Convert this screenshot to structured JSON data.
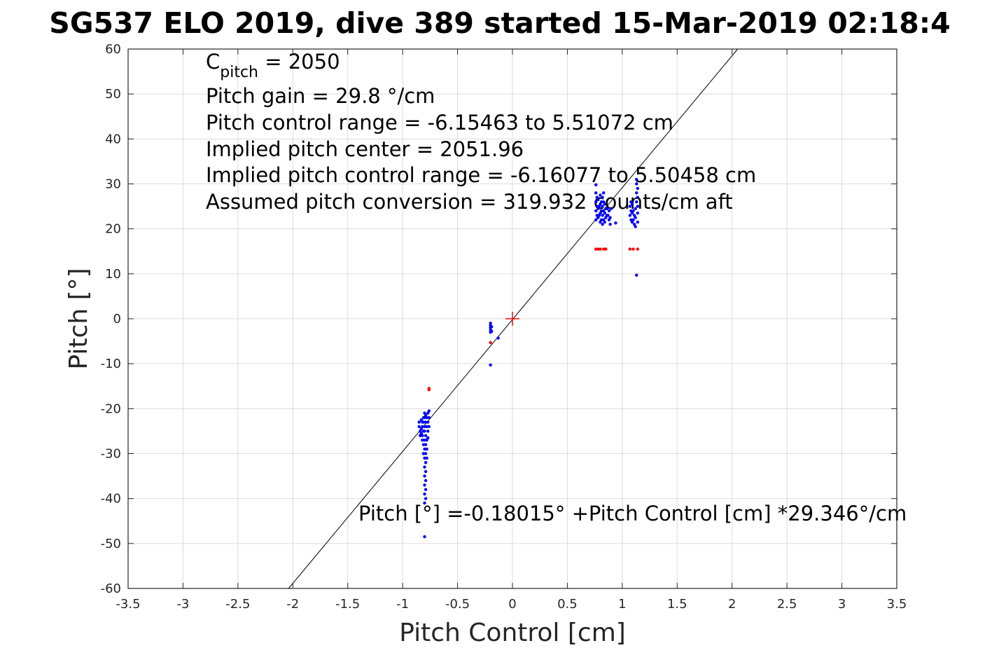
{
  "chart_data": {
    "type": "scatter",
    "title": "SG537 ELO 2019, dive 389 started 15-Mar-2019 02:18:4",
    "xlabel": "Pitch Control [cm]",
    "ylabel": "Pitch [°]",
    "xlim": [
      -3.5,
      3.5
    ],
    "ylim": [
      -60,
      60
    ],
    "xticks": [
      -3.5,
      -3,
      -2.5,
      -2,
      -1.5,
      -1,
      -0.5,
      0,
      0.5,
      1,
      1.5,
      2,
      2.5,
      3,
      3.5
    ],
    "xtick_labels": [
      "-3.5",
      "-3",
      "-2.5",
      "-2",
      "-1.5",
      "-1",
      "-0.5",
      "0",
      "0.5",
      "1",
      "1.5",
      "2",
      "2.5",
      "3",
      "3.5"
    ],
    "yticks": [
      -60,
      -50,
      -40,
      -30,
      -20,
      -10,
      0,
      10,
      20,
      30,
      40,
      50,
      60
    ],
    "ytick_labels": [
      "-60",
      "-50",
      "-40",
      "-30",
      "-20",
      "-10",
      "0",
      "10",
      "20",
      "30",
      "40",
      "50",
      "60"
    ],
    "grid": true,
    "annotations": {
      "cpitch_main": "C",
      "cpitch_sub": "pitch",
      "cpitch_rest": " = 2050",
      "lines": [
        "Pitch gain = 29.8 °/cm",
        "Pitch control range = -6.15463 to 5.51072 cm",
        "Implied pitch center = 2051.96",
        "Implied pitch control range = -6.16077 to 5.50458 cm",
        "Assumed pitch conversion = 319.932 counts/cm aft"
      ],
      "fit_equation": "Pitch [°] =-0.18015° +Pitch Control [cm] *29.346°/cm"
    },
    "fit_line": {
      "intercept": -0.18015,
      "slope": 29.346,
      "color": "#000000"
    },
    "center_marker": {
      "x": 0,
      "y": 0,
      "color": "#ff0000"
    },
    "series": [
      {
        "color": "#0000ff",
        "points": [
          [
            -0.85,
            -23
          ],
          [
            -0.85,
            -24
          ],
          [
            -0.84,
            -25
          ],
          [
            -0.84,
            -26
          ],
          [
            -0.83,
            -22.5
          ],
          [
            -0.83,
            -24.5
          ],
          [
            -0.83,
            -25.5
          ],
          [
            -0.82,
            -23
          ],
          [
            -0.82,
            -24
          ],
          [
            -0.82,
            -26
          ],
          [
            -0.82,
            -27
          ],
          [
            -0.81,
            -22
          ],
          [
            -0.81,
            -23
          ],
          [
            -0.81,
            -25
          ],
          [
            -0.81,
            -28
          ],
          [
            -0.81,
            -30
          ],
          [
            -0.8,
            -21
          ],
          [
            -0.8,
            -22
          ],
          [
            -0.8,
            -24
          ],
          [
            -0.8,
            -25
          ],
          [
            -0.8,
            -27
          ],
          [
            -0.8,
            -29
          ],
          [
            -0.8,
            -31
          ],
          [
            -0.8,
            -33
          ],
          [
            -0.8,
            -35
          ],
          [
            -0.8,
            -37
          ],
          [
            -0.8,
            -39
          ],
          [
            -0.8,
            -41
          ],
          [
            -0.8,
            -48.5
          ],
          [
            -0.79,
            -21.5
          ],
          [
            -0.79,
            -23
          ],
          [
            -0.79,
            -26
          ],
          [
            -0.79,
            -28
          ],
          [
            -0.79,
            -30
          ],
          [
            -0.79,
            -32
          ],
          [
            -0.79,
            -34
          ],
          [
            -0.79,
            -36
          ],
          [
            -0.79,
            -38
          ],
          [
            -0.79,
            -40
          ],
          [
            -0.78,
            -22
          ],
          [
            -0.78,
            -24
          ],
          [
            -0.78,
            -27
          ],
          [
            -0.78,
            -29
          ],
          [
            -0.78,
            -31
          ],
          [
            -0.77,
            -21
          ],
          [
            -0.77,
            -23
          ],
          [
            -0.77,
            -25
          ],
          [
            -0.77,
            -26.5
          ],
          [
            -0.76,
            -20.5
          ],
          [
            -0.76,
            -22
          ],
          [
            -0.76,
            -24
          ],
          [
            -0.2,
            -1
          ],
          [
            -0.2,
            -1.5
          ],
          [
            -0.2,
            -2
          ],
          [
            -0.2,
            -2.5
          ],
          [
            -0.2,
            -3
          ],
          [
            -0.2,
            -10.3
          ],
          [
            -0.19,
            -1.8
          ],
          [
            -0.19,
            -2.8
          ],
          [
            -0.13,
            -4.3
          ],
          [
            0.76,
            22
          ],
          [
            0.76,
            24
          ],
          [
            0.76,
            26
          ],
          [
            0.76,
            28
          ],
          [
            0.76,
            29.8
          ],
          [
            0.77,
            23
          ],
          [
            0.77,
            25
          ],
          [
            0.77,
            27
          ],
          [
            0.78,
            22.5
          ],
          [
            0.78,
            24.5
          ],
          [
            0.78,
            26.5
          ],
          [
            0.79,
            23
          ],
          [
            0.79,
            25
          ],
          [
            0.8,
            21.5
          ],
          [
            0.8,
            23.5
          ],
          [
            0.8,
            25.5
          ],
          [
            0.8,
            27.5
          ],
          [
            0.81,
            22
          ],
          [
            0.81,
            24
          ],
          [
            0.81,
            26
          ],
          [
            0.82,
            21
          ],
          [
            0.82,
            23
          ],
          [
            0.82,
            25
          ],
          [
            0.82,
            27
          ],
          [
            0.83,
            22
          ],
          [
            0.83,
            24
          ],
          [
            0.83,
            26
          ],
          [
            0.83,
            28
          ],
          [
            0.84,
            21.5
          ],
          [
            0.84,
            23.5
          ],
          [
            0.84,
            25.5
          ],
          [
            0.85,
            22.5
          ],
          [
            0.85,
            24.5
          ],
          [
            0.86,
            23
          ],
          [
            0.86,
            24.5
          ],
          [
            0.87,
            23
          ],
          [
            0.88,
            22
          ],
          [
            0.88,
            24
          ],
          [
            0.89,
            21
          ],
          [
            0.89,
            22.5
          ],
          [
            0.9,
            24.5
          ],
          [
            0.94,
            21.3
          ],
          [
            1.07,
            23
          ],
          [
            1.07,
            25
          ],
          [
            1.08,
            22
          ],
          [
            1.08,
            24
          ],
          [
            1.08,
            26
          ],
          [
            1.09,
            21.5
          ],
          [
            1.09,
            23.5
          ],
          [
            1.09,
            25.5
          ],
          [
            1.1,
            22
          ],
          [
            1.1,
            24
          ],
          [
            1.11,
            21
          ],
          [
            1.11,
            23
          ],
          [
            1.12,
            20.5
          ],
          [
            1.12,
            22.5
          ],
          [
            1.12,
            24.5
          ],
          [
            1.13,
            26
          ],
          [
            1.13,
            28
          ],
          [
            1.13,
            30
          ],
          [
            1.13,
            31
          ],
          [
            1.13,
            9.7
          ],
          [
            1.14,
            27
          ],
          [
            1.14,
            29
          ],
          [
            1.14,
            25
          ],
          [
            1.14,
            21.5
          ],
          [
            1.14,
            23.5
          ]
        ]
      },
      {
        "color": "#ff0000",
        "points": [
          [
            -0.76,
            -15.5
          ],
          [
            -0.76,
            -15.8
          ],
          [
            -0.2,
            -5.3
          ],
          [
            0.76,
            15.5
          ],
          [
            0.78,
            15.5
          ],
          [
            0.8,
            15.5
          ],
          [
            0.83,
            15.5
          ],
          [
            0.85,
            15.5
          ],
          [
            1.07,
            15.5
          ],
          [
            1.1,
            15.5
          ],
          [
            1.14,
            15.5
          ]
        ]
      }
    ]
  }
}
